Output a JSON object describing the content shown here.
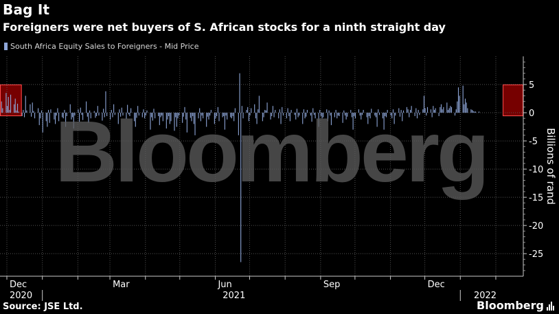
{
  "header": {
    "title": "Bag It",
    "subtitle": "Foreigners were net buyers of S. African stocks for a ninth straight day"
  },
  "footer": {
    "source": "Source: JSE Ltd.",
    "brand": "Bloomberg"
  },
  "watermark": "Bloomberg",
  "colors": {
    "background": "#000000",
    "bar": "#8ea6d8",
    "highlight_fill": "#8b0000",
    "highlight_border": "#ff4d4d",
    "grid": "#555555"
  },
  "chart_data": {
    "type": "bar",
    "title": "Bag It",
    "subtitle": "Foreigners were net buyers of S. African stocks for a ninth straight day",
    "ylabel": "Billions of rand",
    "ylim": [
      -29,
      10
    ],
    "y_ticks": [
      5,
      0,
      -5,
      -10,
      -15,
      -20,
      -25
    ],
    "y_tick_labels": [
      "5",
      "0",
      "-5",
      "-10",
      "-15",
      "-20",
      "-25"
    ],
    "x_range": [
      "2020-11-25",
      "2022-02-25"
    ],
    "x_month_ticks": [
      "2020-12-01",
      "2021-01-01",
      "2021-02-01",
      "2021-03-01",
      "2021-04-01",
      "2021-05-01",
      "2021-06-01",
      "2021-07-01",
      "2021-08-01",
      "2021-09-01",
      "2021-10-01",
      "2021-11-01",
      "2021-12-01",
      "2022-01-01",
      "2022-02-01"
    ],
    "x_labels": [
      {
        "date": "2020-12-01",
        "text": "Dec"
      },
      {
        "date": "2021-03-01",
        "text": "Mar"
      },
      {
        "date": "2021-06-01",
        "text": "Jun"
      },
      {
        "date": "2021-09-01",
        "text": "Sep"
      },
      {
        "date": "2021-12-01",
        "text": "Dec"
      }
    ],
    "year_labels": [
      {
        "date": "2020-12-01",
        "text": "2020"
      },
      {
        "date": "2021-06-15",
        "text": "2021"
      },
      {
        "date": "2022-01-20",
        "text": "2022"
      }
    ],
    "year_dividers": [
      "2021-01-01",
      "2022-01-01"
    ],
    "grid": true,
    "legend": {
      "position": "top-left",
      "entries": [
        "South Africa Equity Sales to Foreigners - Mid Price"
      ]
    },
    "highlights": [
      {
        "start": "2020-11-25",
        "end": "2020-12-14"
      },
      {
        "start": "2022-02-07",
        "end": "2022-02-25"
      }
    ],
    "series": [
      {
        "name": "South Africa Equity Sales to Foreigners - Mid Price",
        "start_date": "2020-11-25",
        "frequency": "business-day",
        "values": [
          -0.5,
          2.0,
          0.8,
          3.5,
          1.2,
          2.8,
          0.5,
          3.2,
          1.5,
          2.5,
          0.4,
          1.6,
          0.2,
          -0.6,
          0.5,
          -0.8,
          3.0,
          0.4,
          1.5,
          -0.7,
          1.8,
          0.3,
          -1.0,
          0.8,
          -2.2,
          -1.0,
          0.4,
          -3.5,
          -1.5,
          -2.5,
          0.5,
          -1.8,
          0.6,
          -1.2,
          -2.0,
          -0.5,
          0.8,
          -1.5,
          -0.8,
          -1.0,
          0.5,
          -2.5,
          -0.6,
          1.5,
          -1.2,
          -0.8,
          -2.8,
          -0.5,
          0.6,
          -1.6,
          0.9,
          -0.4,
          -1.3,
          2.0,
          -0.7,
          -1.8,
          0.4,
          -1.0,
          0.3,
          -0.9,
          -0.6,
          1.2,
          -0.5,
          -1.4,
          0.7,
          -0.8,
          3.8,
          -0.6,
          -1.2,
          0.5,
          -0.8,
          1.5,
          -0.4,
          -2.0,
          0.6,
          -0.7,
          0.9,
          -0.5,
          -1.1,
          1.4,
          -0.3,
          -0.6,
          0.8,
          -1.5,
          -2.5,
          -0.9,
          1.2,
          -0.5,
          -0.8,
          0.6,
          -1.0,
          -0.5,
          0.4,
          -3.0,
          -0.8,
          -1.4,
          0.7,
          -1.0,
          -0.6,
          -2.2,
          -0.8,
          -0.5,
          -1.5,
          -2.8,
          -1.2,
          -0.6,
          -2.0,
          -1.5,
          -3.2,
          -0.8,
          -2.5,
          -1.0,
          -0.5,
          -1.8,
          -0.7,
          1.0,
          -1.2,
          -3.5,
          -0.9,
          -1.5,
          -0.6,
          -2.0,
          -4.0,
          -1.0,
          0.8,
          -1.5,
          -0.5,
          -1.0,
          -2.5,
          -0.7,
          -1.2,
          -0.5,
          0.5,
          -2.0,
          -1.0,
          -0.6,
          1.0,
          -1.5,
          -0.8,
          -0.6,
          -3.0,
          -0.5,
          -1.2,
          -0.8,
          -1.0,
          -0.6,
          -1.5,
          0.8,
          -4.0,
          7.0,
          -26.5,
          1.2,
          -1.0,
          0.5,
          1.0,
          -1.5,
          -0.5,
          0.8,
          1.5,
          -1.0,
          -2.0,
          0.6,
          3.0,
          -1.5,
          -0.8,
          0.5,
          0.4,
          1.8,
          -1.2,
          -0.6,
          1.2,
          -0.8,
          0.5,
          -1.0,
          0.6,
          -2.0,
          1.0,
          -0.5,
          -1.0,
          0.8,
          -0.6,
          -1.5,
          0.5,
          -0.4,
          -1.2,
          0.7,
          -0.8,
          -0.5,
          -2.0,
          0.6,
          -1.0,
          -0.7,
          0.5,
          -0.5,
          -1.6,
          0.8,
          -0.4,
          -1.0,
          -2.5,
          0.5,
          -0.6,
          -1.0,
          -0.8,
          0.6,
          -1.5,
          0.4,
          -0.5,
          -2.2,
          -0.8,
          0.5,
          -1.0,
          -0.5,
          -0.6,
          -1.8,
          0.4,
          -0.5,
          -1.2,
          -0.7,
          0.5,
          -0.8,
          -3.0,
          -0.6,
          -1.0,
          0.6,
          -0.5,
          -1.2,
          -0.4,
          0.5,
          -0.8,
          -2.0,
          -0.6,
          -1.0,
          0.7,
          -0.5,
          -0.8,
          -2.5,
          0.6,
          -0.4,
          -1.0,
          -3.0,
          -0.6,
          -0.8,
          0.5,
          -0.5,
          -1.0,
          0.6,
          -2.0,
          -0.5,
          0.8,
          -0.7,
          0.5,
          -1.5,
          0.4,
          1.0,
          0.6,
          -0.8,
          0.5,
          1.2,
          -0.6,
          0.8,
          -1.0,
          0.5,
          -0.4,
          0.6,
          3.0,
          0.8,
          -0.5,
          1.0,
          0.6,
          -0.8,
          1.2,
          0.5,
          0.8,
          -0.6,
          1.0,
          1.5,
          0.6,
          1.0,
          1.8,
          0.5,
          0.8,
          1.2,
          1.0,
          -0.5,
          0.6,
          2.0,
          4.5,
          3.0,
          4.8,
          1.5,
          2.5,
          1.8,
          0.8,
          0.6,
          0.5,
          0.3,
          0.2,
          0.2,
          0.2
        ]
      }
    ]
  }
}
